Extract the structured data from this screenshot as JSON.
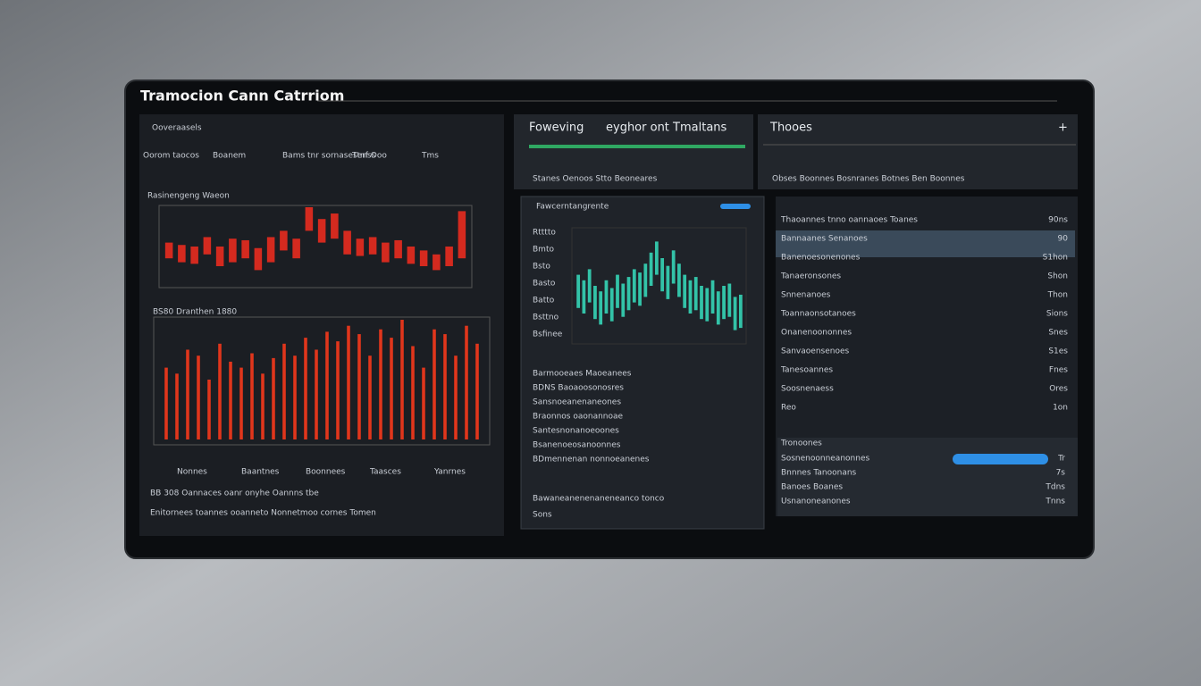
{
  "header": {
    "title": "Tramocion Cann Catrriom"
  },
  "left_panel": {
    "title": "Ooveraasels",
    "tabs": [
      "Oorom taocos",
      "Boanem",
      "Bams tnr sornasesenss",
      "Ttnf  Ooo",
      "Tms"
    ],
    "chart_1": {
      "type": "candlestick",
      "title": "Rasinengeng Waeon",
      "color": "#d42a1f",
      "ylim": [
        0,
        100
      ],
      "highs": [
        55,
        52,
        50,
        62,
        50,
        60,
        58,
        48,
        62,
        70,
        60,
        100,
        85,
        92,
        70,
        60,
        62,
        55,
        58,
        50,
        45,
        40,
        50,
        95
      ],
      "lows": [
        35,
        30,
        28,
        40,
        25,
        30,
        35,
        20,
        30,
        45,
        35,
        70,
        55,
        60,
        40,
        38,
        40,
        30,
        35,
        28,
        25,
        20,
        25,
        35
      ]
    },
    "chart_2": {
      "type": "bar",
      "title": "BS80 Dranthen 1880",
      "color": "#e0361c",
      "ylim": [
        0,
        100
      ],
      "values": [
        60,
        55,
        75,
        70,
        50,
        80,
        65,
        60,
        72,
        55,
        68,
        80,
        70,
        85,
        75,
        90,
        82,
        95,
        88,
        70,
        92,
        85,
        100,
        78,
        60,
        92,
        88,
        70,
        95,
        80
      ]
    },
    "footer_tabs": [
      "Nonnes",
      "Baantnes",
      "Boonnees",
      "Taasces",
      "Yanrnes"
    ],
    "footer_rows": [
      "BB 308 Oannaces oanr onyhe Oannns tbe",
      "Enitornees toannes ooanneto Nonnetmoo cornes Tomen"
    ]
  },
  "center_top": {
    "title": "Foweving",
    "subtitle": "eyghor ont Tmaltans",
    "row": "Stanes   Oenoos   Stto  Beoneares"
  },
  "center_panel": {
    "title": "Fawcerntangrente",
    "axis_labels": [
      "Rtttto",
      "Bmto",
      "Bsto",
      "Basto",
      "Batto",
      "Bsttno",
      "Bsfinee"
    ],
    "chart": {
      "type": "candlestick",
      "color": "#33c3a8",
      "ylim": [
        0,
        100
      ],
      "highs": [
        60,
        55,
        65,
        50,
        45,
        55,
        48,
        60,
        52,
        58,
        65,
        62,
        70,
        80,
        90,
        75,
        68,
        82,
        70,
        60,
        55,
        58,
        50,
        48,
        55,
        45,
        50,
        52,
        40,
        42
      ],
      "lows": [
        30,
        25,
        35,
        20,
        15,
        25,
        18,
        30,
        22,
        28,
        35,
        32,
        40,
        50,
        60,
        45,
        38,
        52,
        40,
        30,
        25,
        28,
        20,
        18,
        25,
        15,
        20,
        22,
        10,
        12
      ]
    },
    "rows": [
      "Barmooeaes Maoeanees",
      "BDNS Baoaoosonosres",
      "Sansnoeanenaneones",
      "Braonnos oaonannoae",
      "Santesnonanoeoones",
      "Bsanenoeosanoonnes",
      "BDmennenan nonnoeanenes"
    ],
    "footer": [
      "Bawaneanenenaneneanco tonco",
      "Sons"
    ]
  },
  "right_top": {
    "title": "Thooes",
    "action": "+",
    "row": "Obses   Boonnes   Bosnranes   Botnes   Ben  Boonnes"
  },
  "right_panel": {
    "rows": [
      {
        "label": "Thaoannes tnno oannaoes Toanes",
        "value": "90ns"
      },
      {
        "label": "Bannaanes Senanoes",
        "value": "90"
      },
      {
        "label": "Banenoesonenones",
        "value": "S1hon"
      },
      {
        "label": "Tanaeronsones",
        "value": "Shon"
      },
      {
        "label": "Snnenanoes",
        "value": "Thon"
      },
      {
        "label": "Toannaonsotanoes",
        "value": "Sions"
      },
      {
        "label": "Onanenoononnes",
        "value": "Snes"
      },
      {
        "label": "Sanvaoensenoes",
        "value": "S1es"
      },
      {
        "label": "Tanesoannes",
        "value": "Fnes"
      },
      {
        "label": "Soosnenaess",
        "value": "Ores"
      },
      {
        "label": "Reo",
        "value": "1on"
      }
    ],
    "footer_title": "Tronoones",
    "footer_rows": [
      {
        "label": "Sosnenoonneanonnes",
        "value": "Tr"
      },
      {
        "label": "Bnnnes  Tanoonans",
        "value": "7s"
      },
      {
        "label": "Banoes Boanes",
        "value": "Tdns"
      },
      {
        "label": "Usnanoneanones",
        "value": "Tnns"
      }
    ]
  }
}
